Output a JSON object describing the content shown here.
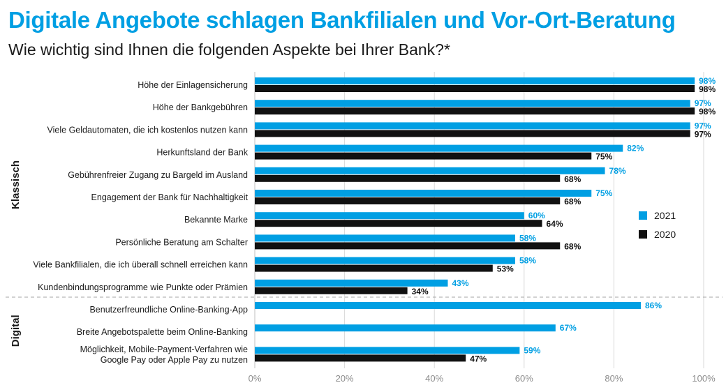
{
  "title": "Digitale Angebote schlagen Bankfilialen und Vor-Ort-Beratung",
  "subtitle": "Wie wichtig sind Ihnen die folgenden Aspekte bei Ihrer Bank?*",
  "colors": {
    "series_2021": "#009fe3",
    "series_2020": "#111111",
    "grid": "#d9d9d9",
    "title": "#009fe3"
  },
  "chart_data": {
    "type": "bar",
    "orientation": "horizontal",
    "xlim": [
      0,
      100
    ],
    "xticks": [
      "0%",
      "20%",
      "40%",
      "60%",
      "80%",
      "100%"
    ],
    "groups": [
      {
        "name": "Klassisch",
        "count": 10
      },
      {
        "name": "Digital",
        "count": 3
      }
    ],
    "categories": [
      "Höhe der Einlagensicherung",
      "Höhe der Bankgebühren",
      "Viele Geldautomaten, die ich kostenlos nutzen kann",
      "Herkunftsland der Bank",
      "Gebührenfreier Zugang zu Bargeld im Ausland",
      "Engagement der Bank für Nachhaltigkeit",
      "Bekannte Marke",
      "Persönliche Beratung am Schalter",
      "Viele Bankfilialen, die ich überall schnell erreichen kann",
      "Kundenbindungsprogramme wie Punkte oder Prämien",
      "Benutzerfreundliche Online-Banking-App",
      "Breite Angebotspalette beim Online-Banking",
      "Möglichkeit, Mobile-Payment-Verfahren wie\nGoogle Pay oder Apple Pay zu nutzen"
    ],
    "series": [
      {
        "name": "2021",
        "values": [
          98,
          97,
          97,
          82,
          78,
          75,
          60,
          58,
          58,
          43,
          86,
          67,
          59
        ]
      },
      {
        "name": "2020",
        "values": [
          98,
          98,
          97,
          75,
          68,
          68,
          64,
          68,
          53,
          34,
          null,
          null,
          47
        ]
      }
    ],
    "legend": "right",
    "grid": true
  }
}
